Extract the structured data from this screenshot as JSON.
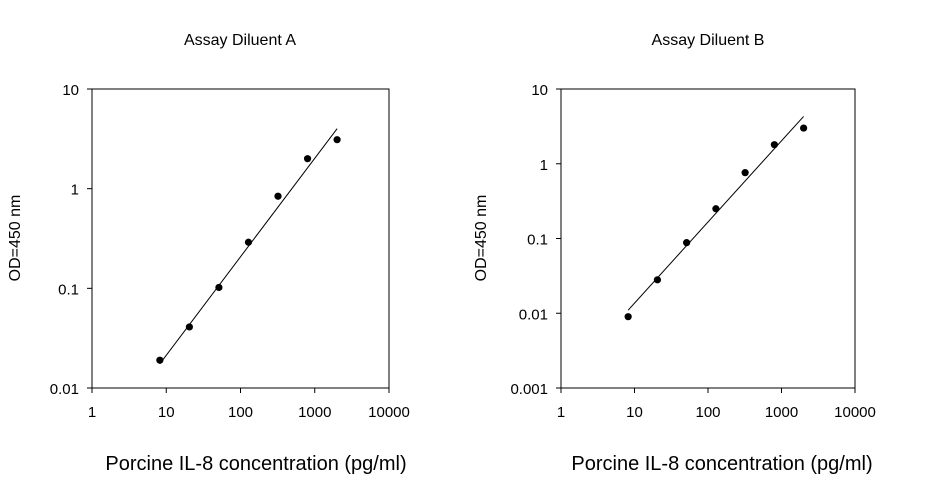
{
  "chart_data": [
    {
      "type": "scatter",
      "title": "Assay Diluent A",
      "xlabel": "Porcine IL-8 concentration (pg/ml)",
      "ylabel": "OD=450 nm",
      "xscale": "log",
      "yscale": "log",
      "xlim": [
        1,
        10000
      ],
      "ylim": [
        0.01,
        10
      ],
      "xticks": [
        "1",
        "10",
        "100",
        "1000",
        "10000"
      ],
      "yticks": [
        "0.01",
        "0.1",
        "1",
        "10"
      ],
      "grid": false,
      "legend": "none",
      "color": "#000000",
      "points": [
        {
          "x": 8.2,
          "y": 0.019
        },
        {
          "x": 20.5,
          "y": 0.041
        },
        {
          "x": 51.2,
          "y": 0.102
        },
        {
          "x": 128,
          "y": 0.29
        },
        {
          "x": 320,
          "y": 0.84
        },
        {
          "x": 800,
          "y": 2.0
        },
        {
          "x": 2000,
          "y": 3.1
        }
      ],
      "fit_line": {
        "x": [
          8.2,
          2000
        ],
        "y": [
          0.0175,
          4.0
        ]
      }
    },
    {
      "type": "scatter",
      "title": "Assay Diluent B",
      "xlabel": "Porcine IL-8 concentration (pg/ml)",
      "ylabel": "OD=450 nm",
      "xscale": "log",
      "yscale": "log",
      "xlim": [
        1,
        10000
      ],
      "ylim": [
        0.001,
        10
      ],
      "xticks": [
        "1",
        "10",
        "100",
        "1000",
        "10000"
      ],
      "yticks": [
        "0.001",
        "0.01",
        "0.1",
        "1",
        "10"
      ],
      "grid": false,
      "legend": "none",
      "color": "#000000",
      "points": [
        {
          "x": 8.2,
          "y": 0.009
        },
        {
          "x": 20.5,
          "y": 0.028
        },
        {
          "x": 51.2,
          "y": 0.088
        },
        {
          "x": 128,
          "y": 0.25
        },
        {
          "x": 320,
          "y": 0.76
        },
        {
          "x": 800,
          "y": 1.8
        },
        {
          "x": 2000,
          "y": 3.0
        }
      ],
      "fit_line": {
        "x": [
          8.2,
          2000
        ],
        "y": [
          0.011,
          4.3
        ]
      }
    }
  ]
}
